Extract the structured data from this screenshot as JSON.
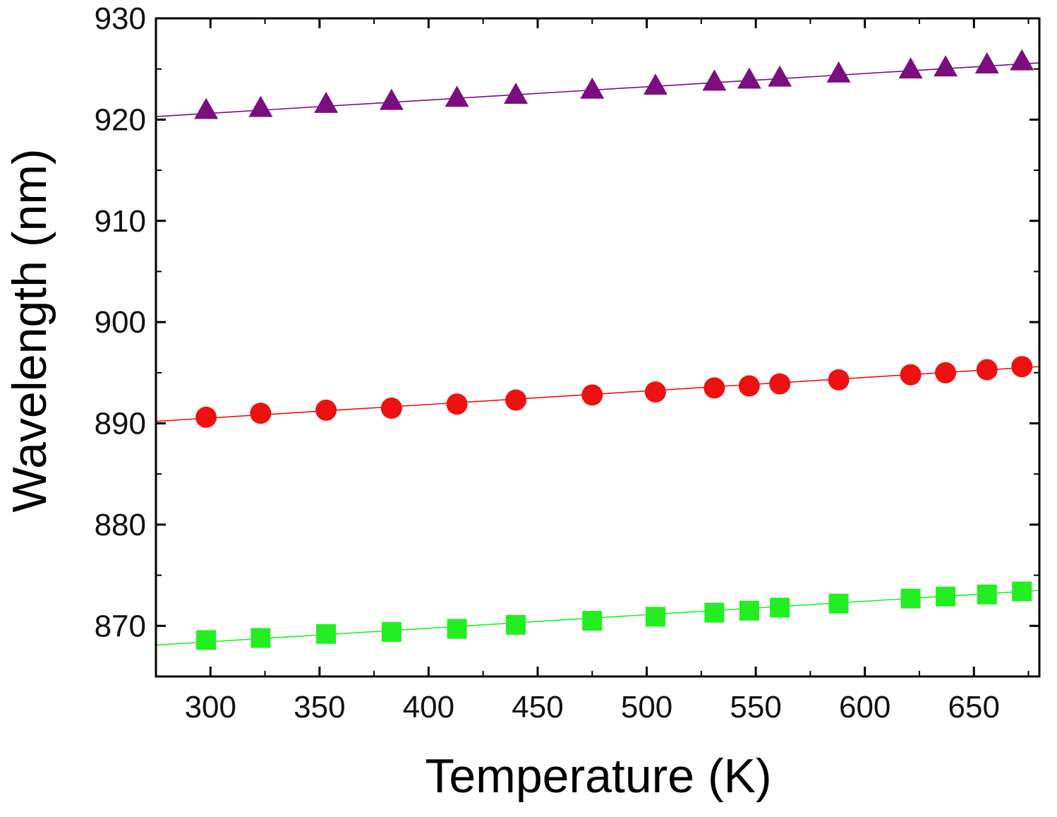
{
  "chart_data": {
    "type": "scatter",
    "title": "",
    "xlabel": "Temperature (K)",
    "ylabel": "Wavelength (nm)",
    "xlim": [
      275,
      680
    ],
    "ylim": [
      865,
      930
    ],
    "xticks": [
      300,
      350,
      400,
      450,
      500,
      550,
      600,
      650
    ],
    "yticks": [
      870,
      880,
      890,
      900,
      910,
      920,
      930
    ],
    "grid": false,
    "legend": "none",
    "x": [
      298,
      323,
      353,
      383,
      413,
      440,
      475,
      504,
      531,
      547,
      561,
      588,
      621,
      637,
      656,
      672
    ],
    "series": [
      {
        "name": "triangle series",
        "marker": "triangle",
        "color": "#7b0f80",
        "values": [
          920.9,
          921.1,
          921.5,
          921.8,
          922.1,
          922.4,
          922.9,
          923.3,
          923.7,
          923.9,
          924.1,
          924.5,
          924.9,
          925.1,
          925.4,
          925.7
        ],
        "fit": {
          "x": [
            275,
            680
          ],
          "y": [
            920.3,
            925.6
          ]
        }
      },
      {
        "name": "circle series",
        "marker": "circle",
        "color": "#ee1111",
        "values": [
          890.6,
          891.0,
          891.3,
          891.5,
          891.9,
          892.3,
          892.8,
          893.1,
          893.5,
          893.7,
          893.9,
          894.3,
          894.8,
          895.0,
          895.3,
          895.6
        ],
        "fit": {
          "x": [
            275,
            680
          ],
          "y": [
            890.2,
            895.6
          ]
        }
      },
      {
        "name": "square series",
        "marker": "square",
        "color": "#22ee22",
        "values": [
          868.6,
          868.8,
          869.2,
          869.4,
          869.7,
          870.1,
          870.5,
          870.9,
          871.3,
          871.5,
          871.8,
          872.2,
          872.7,
          872.9,
          873.1,
          873.4
        ],
        "fit": {
          "x": [
            275,
            680
          ],
          "y": [
            868.1,
            873.5
          ]
        }
      }
    ]
  }
}
